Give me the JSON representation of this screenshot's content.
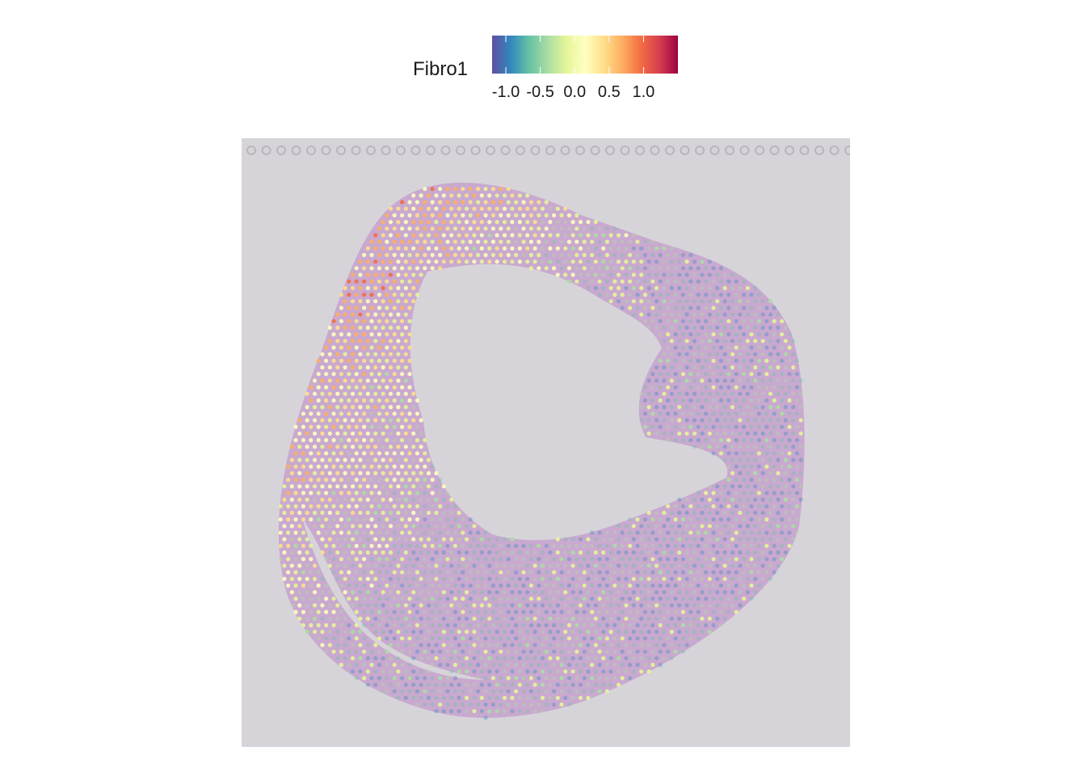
{
  "chart_data": {
    "type": "scatter",
    "title": "",
    "xlabel": "",
    "ylabel": "",
    "legend": {
      "title": "Fibro1",
      "placement": "top",
      "range": [
        -1.2,
        1.5
      ],
      "ticks": [
        {
          "value": -1.0,
          "label": "-1.0"
        },
        {
          "value": -0.5,
          "label": "-0.5"
        },
        {
          "value": 0.0,
          "label": "0.0"
        },
        {
          "value": 0.5,
          "label": "0.5"
        },
        {
          "value": 1.0,
          "label": "1.0"
        }
      ],
      "palette": [
        "#5e4fa2",
        "#3288bd",
        "#66c2a5",
        "#abdda4",
        "#e6f598",
        "#ffffbf",
        "#fee08b",
        "#fdae61",
        "#f46d43",
        "#d53e4f",
        "#9e0142"
      ]
    },
    "background": {
      "image": "tissue-section",
      "grid": false,
      "tissue_color": "#c9a9cf",
      "slide_color": "#d6d4d9"
    }
  }
}
